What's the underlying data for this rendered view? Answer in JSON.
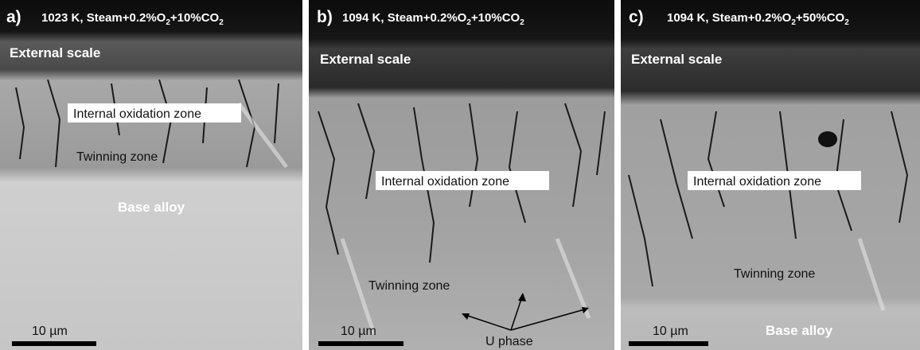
{
  "panels": [
    {
      "label": "a)",
      "title": [
        "1023 K, Steam+0.2%O",
        "2",
        "+10%CO",
        "2"
      ],
      "regions": [
        "External scale",
        "Internal oxidation zone",
        "Twinning zone",
        "Base alloy"
      ],
      "scale_bar": "10 µm"
    },
    {
      "label": "b)",
      "title": [
        "1094 K, Steam+0.2%O",
        "2",
        "+10%CO",
        "2"
      ],
      "regions": [
        "External scale",
        "Internal oxidation zone",
        "Twinning zone",
        "U phase"
      ],
      "scale_bar": "10 µm"
    },
    {
      "label": "c)",
      "title": [
        "1094 K, Steam+0.2%O",
        "2",
        "+50%CO",
        "2"
      ],
      "regions": [
        "External scale",
        "Internal oxidation zone",
        "Twinning zone",
        "Base alloy"
      ],
      "scale_bar": "10 µm"
    }
  ]
}
